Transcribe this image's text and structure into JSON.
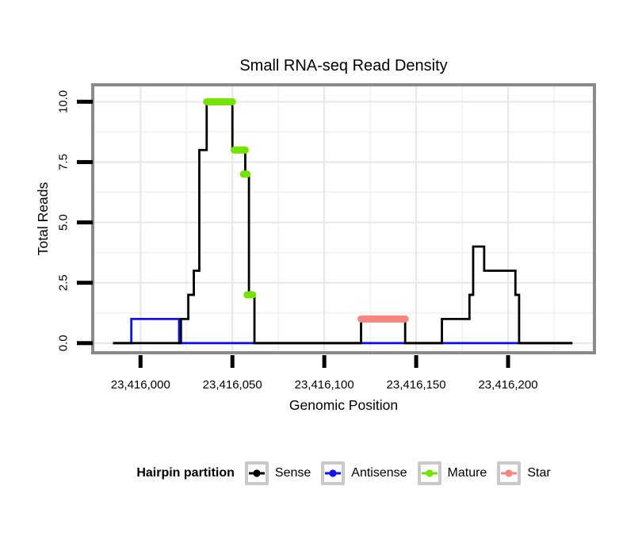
{
  "chart_data": {
    "type": "line",
    "subtype": "step-coverage",
    "title": "Small RNA-seq Read Density",
    "xlabel": "Genomic Position",
    "ylabel": "Total Reads",
    "xlim": [
      23415974,
      23416247
    ],
    "ylim": [
      -0.4,
      10.7
    ],
    "grid": true,
    "x_ticks": [
      {
        "value": 23416000,
        "label": "23,416,000"
      },
      {
        "value": 23416050,
        "label": "23,416,050"
      },
      {
        "value": 23416100,
        "label": "23,416,100"
      },
      {
        "value": 23416150,
        "label": "23,416,150"
      },
      {
        "value": 23416200,
        "label": "23,416,200"
      }
    ],
    "y_ticks": [
      {
        "value": 0,
        "label": "0.0"
      },
      {
        "value": 2.5,
        "label": "2.5"
      },
      {
        "value": 5,
        "label": "5.0"
      },
      {
        "value": 7.5,
        "label": "7.5"
      },
      {
        "value": 10,
        "label": "10.0"
      }
    ],
    "x_minor_ticks": [
      23416025,
      23416075,
      23416125,
      23416175,
      23416225
    ],
    "y_minor_ticks": [
      1.25,
      3.75,
      6.25,
      8.75
    ],
    "series": [
      {
        "name": "Sense",
        "style": "step",
        "color": "#000000",
        "levels": [
          {
            "start": 23415985,
            "end": 23416022,
            "reads": 0
          },
          {
            "start": 23416022,
            "end": 23416026,
            "reads": 1
          },
          {
            "start": 23416026,
            "end": 23416029,
            "reads": 2
          },
          {
            "start": 23416029,
            "end": 23416032,
            "reads": 3
          },
          {
            "start": 23416032,
            "end": 23416036,
            "reads": 8
          },
          {
            "start": 23416036,
            "end": 23416050,
            "reads": 10
          },
          {
            "start": 23416050,
            "end": 23416057,
            "reads": 8
          },
          {
            "start": 23416057,
            "end": 23416059,
            "reads": 7
          },
          {
            "start": 23416059,
            "end": 23416062,
            "reads": 2
          },
          {
            "start": 23416062,
            "end": 23416120,
            "reads": 0
          },
          {
            "start": 23416120,
            "end": 23416144,
            "reads": 1
          },
          {
            "start": 23416144,
            "end": 23416164,
            "reads": 0
          },
          {
            "start": 23416164,
            "end": 23416179,
            "reads": 1
          },
          {
            "start": 23416179,
            "end": 23416181,
            "reads": 2
          },
          {
            "start": 23416181,
            "end": 23416187,
            "reads": 4
          },
          {
            "start": 23416187,
            "end": 23416204,
            "reads": 3
          },
          {
            "start": 23416204,
            "end": 23416206,
            "reads": 2
          },
          {
            "start": 23416206,
            "end": 23416235,
            "reads": 0
          }
        ]
      },
      {
        "name": "Antisense",
        "style": "step",
        "color": "#1212EE",
        "levels": [
          {
            "start": 23415985,
            "end": 23415995,
            "reads": 0
          },
          {
            "start": 23415995,
            "end": 23416021,
            "reads": 1
          },
          {
            "start": 23416021,
            "end": 23416235,
            "reads": 0
          }
        ]
      },
      {
        "name": "Mature",
        "style": "segments",
        "color": "#72E400",
        "segments": [
          {
            "start": 23416036,
            "end": 23416050,
            "reads": 10
          },
          {
            "start": 23416051,
            "end": 23416057,
            "reads": 8
          },
          {
            "start": 23416056,
            "end": 23416058,
            "reads": 7
          },
          {
            "start": 23416058,
            "end": 23416061,
            "reads": 2
          }
        ]
      },
      {
        "name": "Star",
        "style": "segments",
        "color": "#F9867E",
        "segments": [
          {
            "start": 23416120,
            "end": 23416144,
            "reads": 1
          }
        ]
      }
    ],
    "legend": {
      "title": "Hairpin partition",
      "position": "bottom",
      "entries": [
        {
          "label": "Sense",
          "color": "#000000"
        },
        {
          "label": "Antisense",
          "color": "#1212EE"
        },
        {
          "label": "Mature",
          "color": "#72E400"
        },
        {
          "label": "Star",
          "color": "#F9867E"
        }
      ]
    },
    "style_colors": {
      "panel_border": "#8B8B8B",
      "grid_major": "#E7E7E7",
      "grid_minor": "#F3F3F3",
      "tick": "#000000",
      "legend_key_border": "#C9C9C9"
    }
  }
}
